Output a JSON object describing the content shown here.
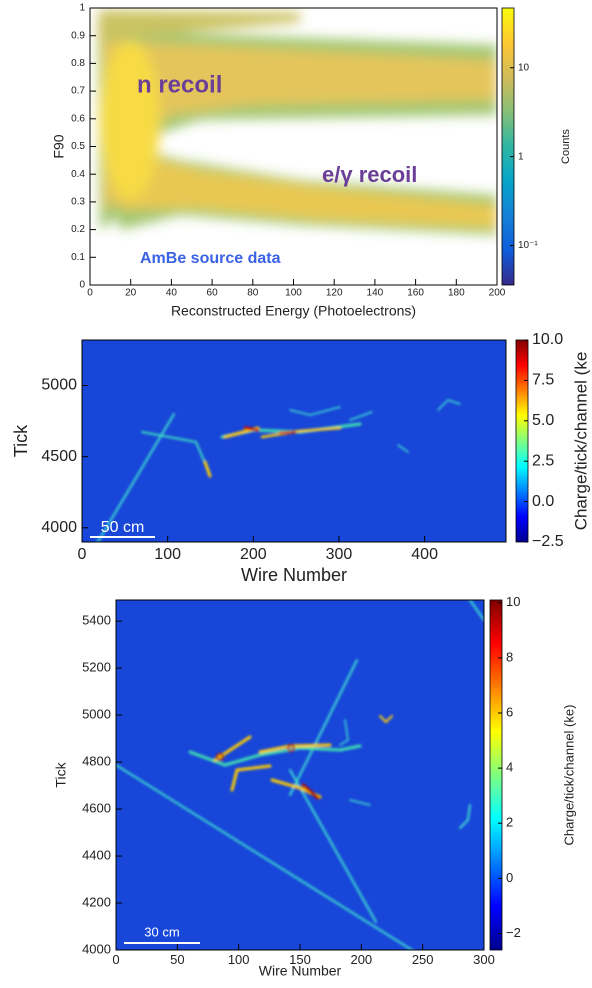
{
  "chart_data": [
    {
      "type": "heatmap",
      "x_label": "Reconstructed Energy (Photoelectrons)",
      "y_label": "F90",
      "xlim": [
        0,
        200
      ],
      "xticks": [
        0,
        20,
        40,
        60,
        80,
        100,
        120,
        140,
        160,
        180,
        200
      ],
      "ylim": [
        0,
        1
      ],
      "yticks": [
        0,
        0.1,
        0.2,
        0.3,
        0.4,
        0.5,
        0.6,
        0.7,
        0.8,
        0.9,
        1
      ],
      "colorbar_label": "Counts",
      "clog": true,
      "clim": [
        0.036,
        47
      ],
      "cticks": [
        {
          "value": 0.1,
          "label": "10⁻¹"
        },
        1,
        10
      ],
      "colormap": [
        "#352a87",
        "#0f5cdd",
        "#1481d6",
        "#06a4ca",
        "#2eb7a4",
        "#87bf77",
        "#d1bb59",
        "#fec832",
        "#f9fb0e"
      ],
      "annotations": [
        "n recoil",
        "e/γ recoil",
        "AmBe source data"
      ]
    },
    {
      "type": "heatmap",
      "x_label": "Wire Number",
      "y_label": "Tick",
      "xlim": [
        0,
        495
      ],
      "xticks": [
        0,
        100,
        200,
        300,
        400
      ],
      "ylim": [
        3900,
        5320
      ],
      "yticks": [
        4000,
        4500,
        5000
      ],
      "colorbar_label": "Charge/tick/channel (ke",
      "clog": false,
      "clim": [
        -2.5,
        10
      ],
      "cticks": [
        {
          "value": -2.5,
          "label": "−2.5"
        },
        {
          "value": 0,
          "label": "0.0"
        },
        2.5,
        {
          "value": 5,
          "label": "5.0"
        },
        7.5,
        {
          "value": 10,
          "label": "10.0"
        }
      ],
      "colormap": [
        "#00008f",
        "#0000ff",
        "#0080ff",
        "#00ffff",
        "#80ff80",
        "#ffff00",
        "#ff8000",
        "#ff0000",
        "#800000"
      ],
      "scale_label": "50 cm"
    },
    {
      "type": "heatmap",
      "x_label": "Wire Number",
      "y_label": "Tick",
      "xlim": [
        0,
        300
      ],
      "xticks": [
        0,
        50,
        100,
        150,
        200,
        250,
        300
      ],
      "ylim": [
        4000,
        5490
      ],
      "yticks": [
        4000,
        4200,
        4400,
        4600,
        4800,
        5000,
        5200,
        5400
      ],
      "colorbar_label": "Charge/tick/channel (ke)",
      "clog": false,
      "clim": [
        -2.6,
        10.1
      ],
      "cticks": [
        {
          "value": -2,
          "label": "−2"
        },
        0,
        2,
        4,
        6,
        8,
        10
      ],
      "colormap": [
        "#00008f",
        "#0000ff",
        "#0080ff",
        "#00ffff",
        "#80ff80",
        "#ffff00",
        "#ff8000",
        "#ff0000",
        "#800000"
      ],
      "scale_label": "30 cm"
    }
  ]
}
